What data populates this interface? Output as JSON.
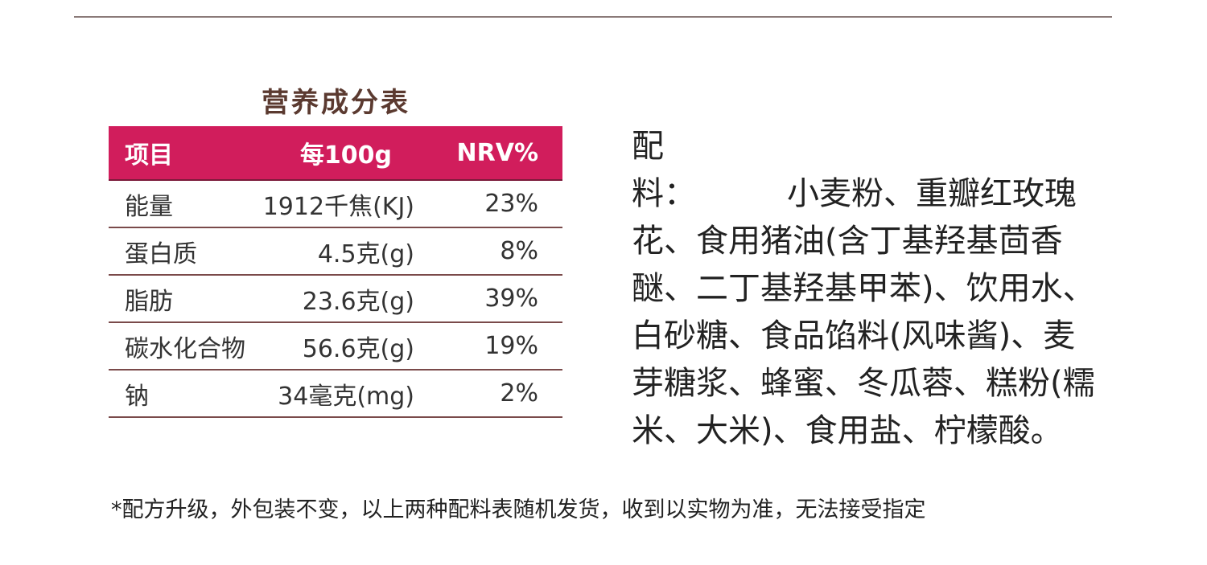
{
  "nutrition": {
    "title": "营养成分表",
    "headers": {
      "item": "项目",
      "per100g": "每100g",
      "nrv": "NRV%"
    },
    "rows": [
      {
        "item": "能量",
        "value": "1912千焦(KJ)",
        "nrv": "23%"
      },
      {
        "item": "蛋白质",
        "value": "4.5克(g)",
        "nrv": "8%"
      },
      {
        "item": "脂肪",
        "value": "23.6克(g)",
        "nrv": "39%"
      },
      {
        "item": "碳水化合物",
        "value": "56.6克(g)",
        "nrv": "19%"
      },
      {
        "item": "钠",
        "value": "34毫克(mg)",
        "nrv": "2%"
      }
    ],
    "colors": {
      "header_bg": "#d11d5c",
      "title": "#5b3a30"
    }
  },
  "ingredients": {
    "label_first": "配",
    "label_second": "料",
    "colon": "：",
    "text": "小麦粉、重瓣红玫瑰花、食用猪油(含丁基羟基茴香醚、二丁基羟基甲苯)、饮用水、白砂糖、食品馅料(风味酱)、麦芽糖浆、蜂蜜、冬瓜蓉、糕粉(糯米、大米)、食用盐、柠檬酸。"
  },
  "footnote": "*配方升级，外包装不变，以上两种配料表随机发货，收到以实物为准，无法接受指定"
}
